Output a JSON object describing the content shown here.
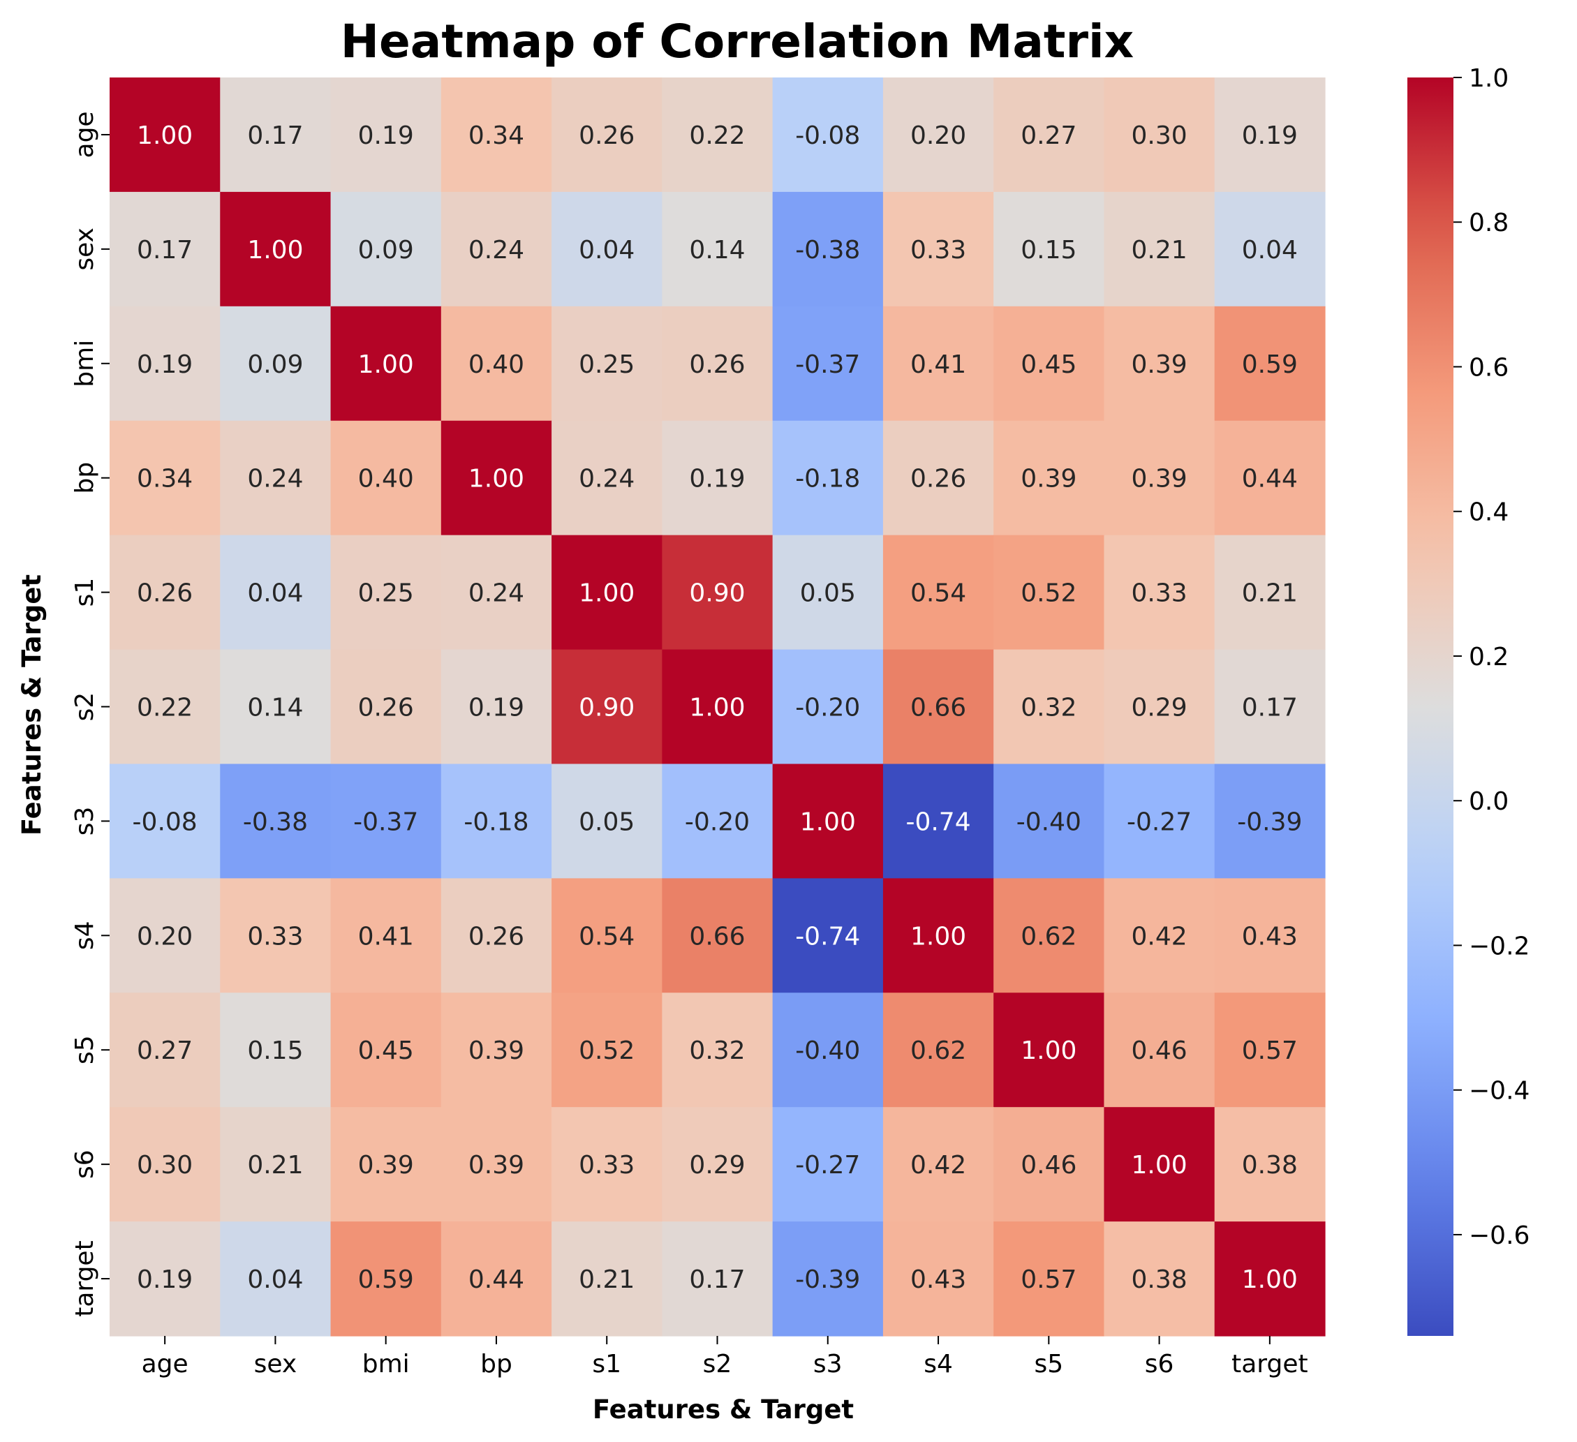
{
  "chart_data": {
    "type": "heatmap",
    "title": "Heatmap of Correlation Matrix",
    "xlabel": "Features & Target",
    "ylabel": "Features & Target",
    "categories": [
      "age",
      "sex",
      "bmi",
      "bp",
      "s1",
      "s2",
      "s3",
      "s4",
      "s5",
      "s6",
      "target"
    ],
    "values": [
      [
        1.0,
        0.17,
        0.19,
        0.34,
        0.26,
        0.22,
        -0.08,
        0.2,
        0.27,
        0.3,
        0.19
      ],
      [
        0.17,
        1.0,
        0.09,
        0.24,
        0.04,
        0.14,
        -0.38,
        0.33,
        0.15,
        0.21,
        0.04
      ],
      [
        0.19,
        0.09,
        1.0,
        0.4,
        0.25,
        0.26,
        -0.37,
        0.41,
        0.45,
        0.39,
        0.59
      ],
      [
        0.34,
        0.24,
        0.4,
        1.0,
        0.24,
        0.19,
        -0.18,
        0.26,
        0.39,
        0.39,
        0.44
      ],
      [
        0.26,
        0.04,
        0.25,
        0.24,
        1.0,
        0.9,
        0.05,
        0.54,
        0.52,
        0.33,
        0.21
      ],
      [
        0.22,
        0.14,
        0.26,
        0.19,
        0.9,
        1.0,
        -0.2,
        0.66,
        0.32,
        0.29,
        0.17
      ],
      [
        -0.08,
        -0.38,
        -0.37,
        -0.18,
        0.05,
        -0.2,
        1.0,
        -0.74,
        -0.4,
        -0.27,
        -0.39
      ],
      [
        0.2,
        0.33,
        0.41,
        0.26,
        0.54,
        0.66,
        -0.74,
        1.0,
        0.62,
        0.42,
        0.43
      ],
      [
        0.27,
        0.15,
        0.45,
        0.39,
        0.52,
        0.32,
        -0.4,
        0.62,
        1.0,
        0.46,
        0.57
      ],
      [
        0.3,
        0.21,
        0.39,
        0.39,
        0.33,
        0.29,
        -0.27,
        0.42,
        0.46,
        1.0,
        0.38
      ],
      [
        0.19,
        0.04,
        0.59,
        0.44,
        0.21,
        0.17,
        -0.39,
        0.43,
        0.57,
        0.38,
        1.0
      ]
    ],
    "colormap": "coolwarm",
    "vmin": -0.74,
    "vmax": 1.0,
    "colorbar_ticks": [
      1.0,
      0.8,
      0.6,
      0.4,
      0.2,
      0.0,
      -0.2,
      -0.4,
      -0.6
    ],
    "colorbar_tick_labels": [
      "1.0",
      "0.8",
      "0.6",
      "0.4",
      "0.2",
      "0.0",
      "−0.2",
      "−0.4",
      "−0.6"
    ],
    "annotation_format": "0.00"
  }
}
